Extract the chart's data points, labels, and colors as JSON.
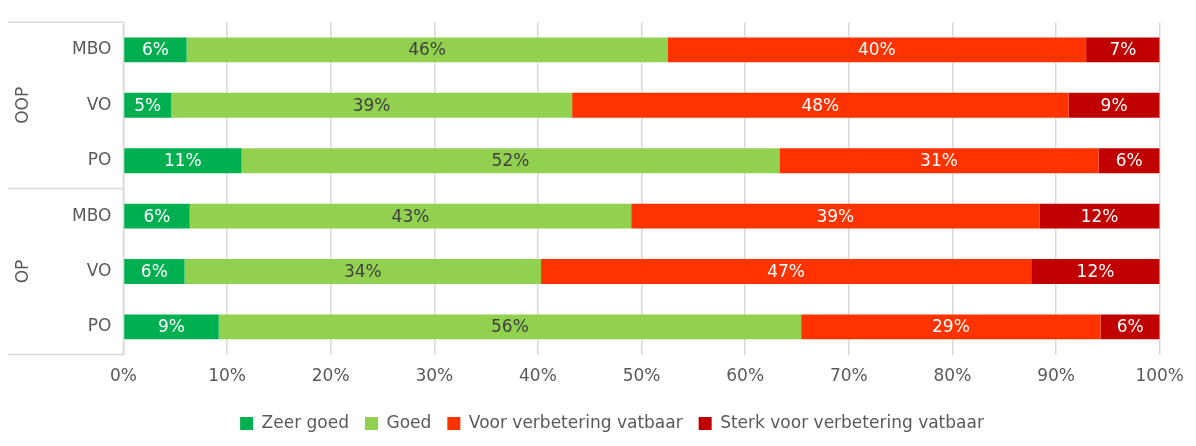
{
  "chart_data": {
    "type": "bar",
    "orientation": "horizontal",
    "stacked": true,
    "categories": [
      "MBO",
      "VO",
      "PO",
      "MBO",
      "VO",
      "PO"
    ],
    "annotations": [
      "OOP",
      "OP"
    ],
    "series": [
      {
        "name": "Zeer goed",
        "color": "#00b050",
        "values": [
          6.1,
          4.6,
          11.4,
          6.4,
          5.9,
          9.2
        ],
        "value_labels": [
          "6%",
          "5%",
          "11%",
          "6%",
          "6%",
          "9%"
        ]
      },
      {
        "name": "Goed",
        "color": "#92d050",
        "values": [
          46.4,
          38.7,
          51.9,
          42.6,
          34.4,
          56.2
        ],
        "value_labels": [
          "46%",
          "39%",
          "52%",
          "43%",
          "34%",
          "56%"
        ]
      },
      {
        "name": "Voor verbetering vatbaar",
        "color": "#ff3300",
        "values": [
          40.4,
          47.9,
          30.8,
          39.4,
          47.3,
          28.9
        ],
        "value_labels": [
          "40%",
          "48%",
          "31%",
          "39%",
          "47%",
          "29%"
        ]
      },
      {
        "name": "Sterk voor verbetering vatbaar",
        "color": "#c00000",
        "values": [
          7.1,
          8.8,
          5.9,
          11.6,
          12.4,
          5.7
        ],
        "value_labels": [
          "7%",
          "9%",
          "6%",
          "12%",
          "12%",
          "6%"
        ]
      }
    ],
    "xlim": [
      0,
      100
    ],
    "xticks": [
      {
        "value": 0,
        "label": "0%"
      },
      {
        "value": 10,
        "label": "10%"
      },
      {
        "value": 20,
        "label": "20%"
      },
      {
        "value": 30,
        "label": "30%"
      },
      {
        "value": 40,
        "label": "40%"
      },
      {
        "value": 50,
        "label": "50%"
      },
      {
        "value": 60,
        "label": "60%"
      },
      {
        "value": 70,
        "label": "70%"
      },
      {
        "value": 80,
        "label": "80%"
      },
      {
        "value": 90,
        "label": "90%"
      },
      {
        "value": 100,
        "label": "100%"
      }
    ],
    "grid": "x",
    "legend": "bottom"
  }
}
